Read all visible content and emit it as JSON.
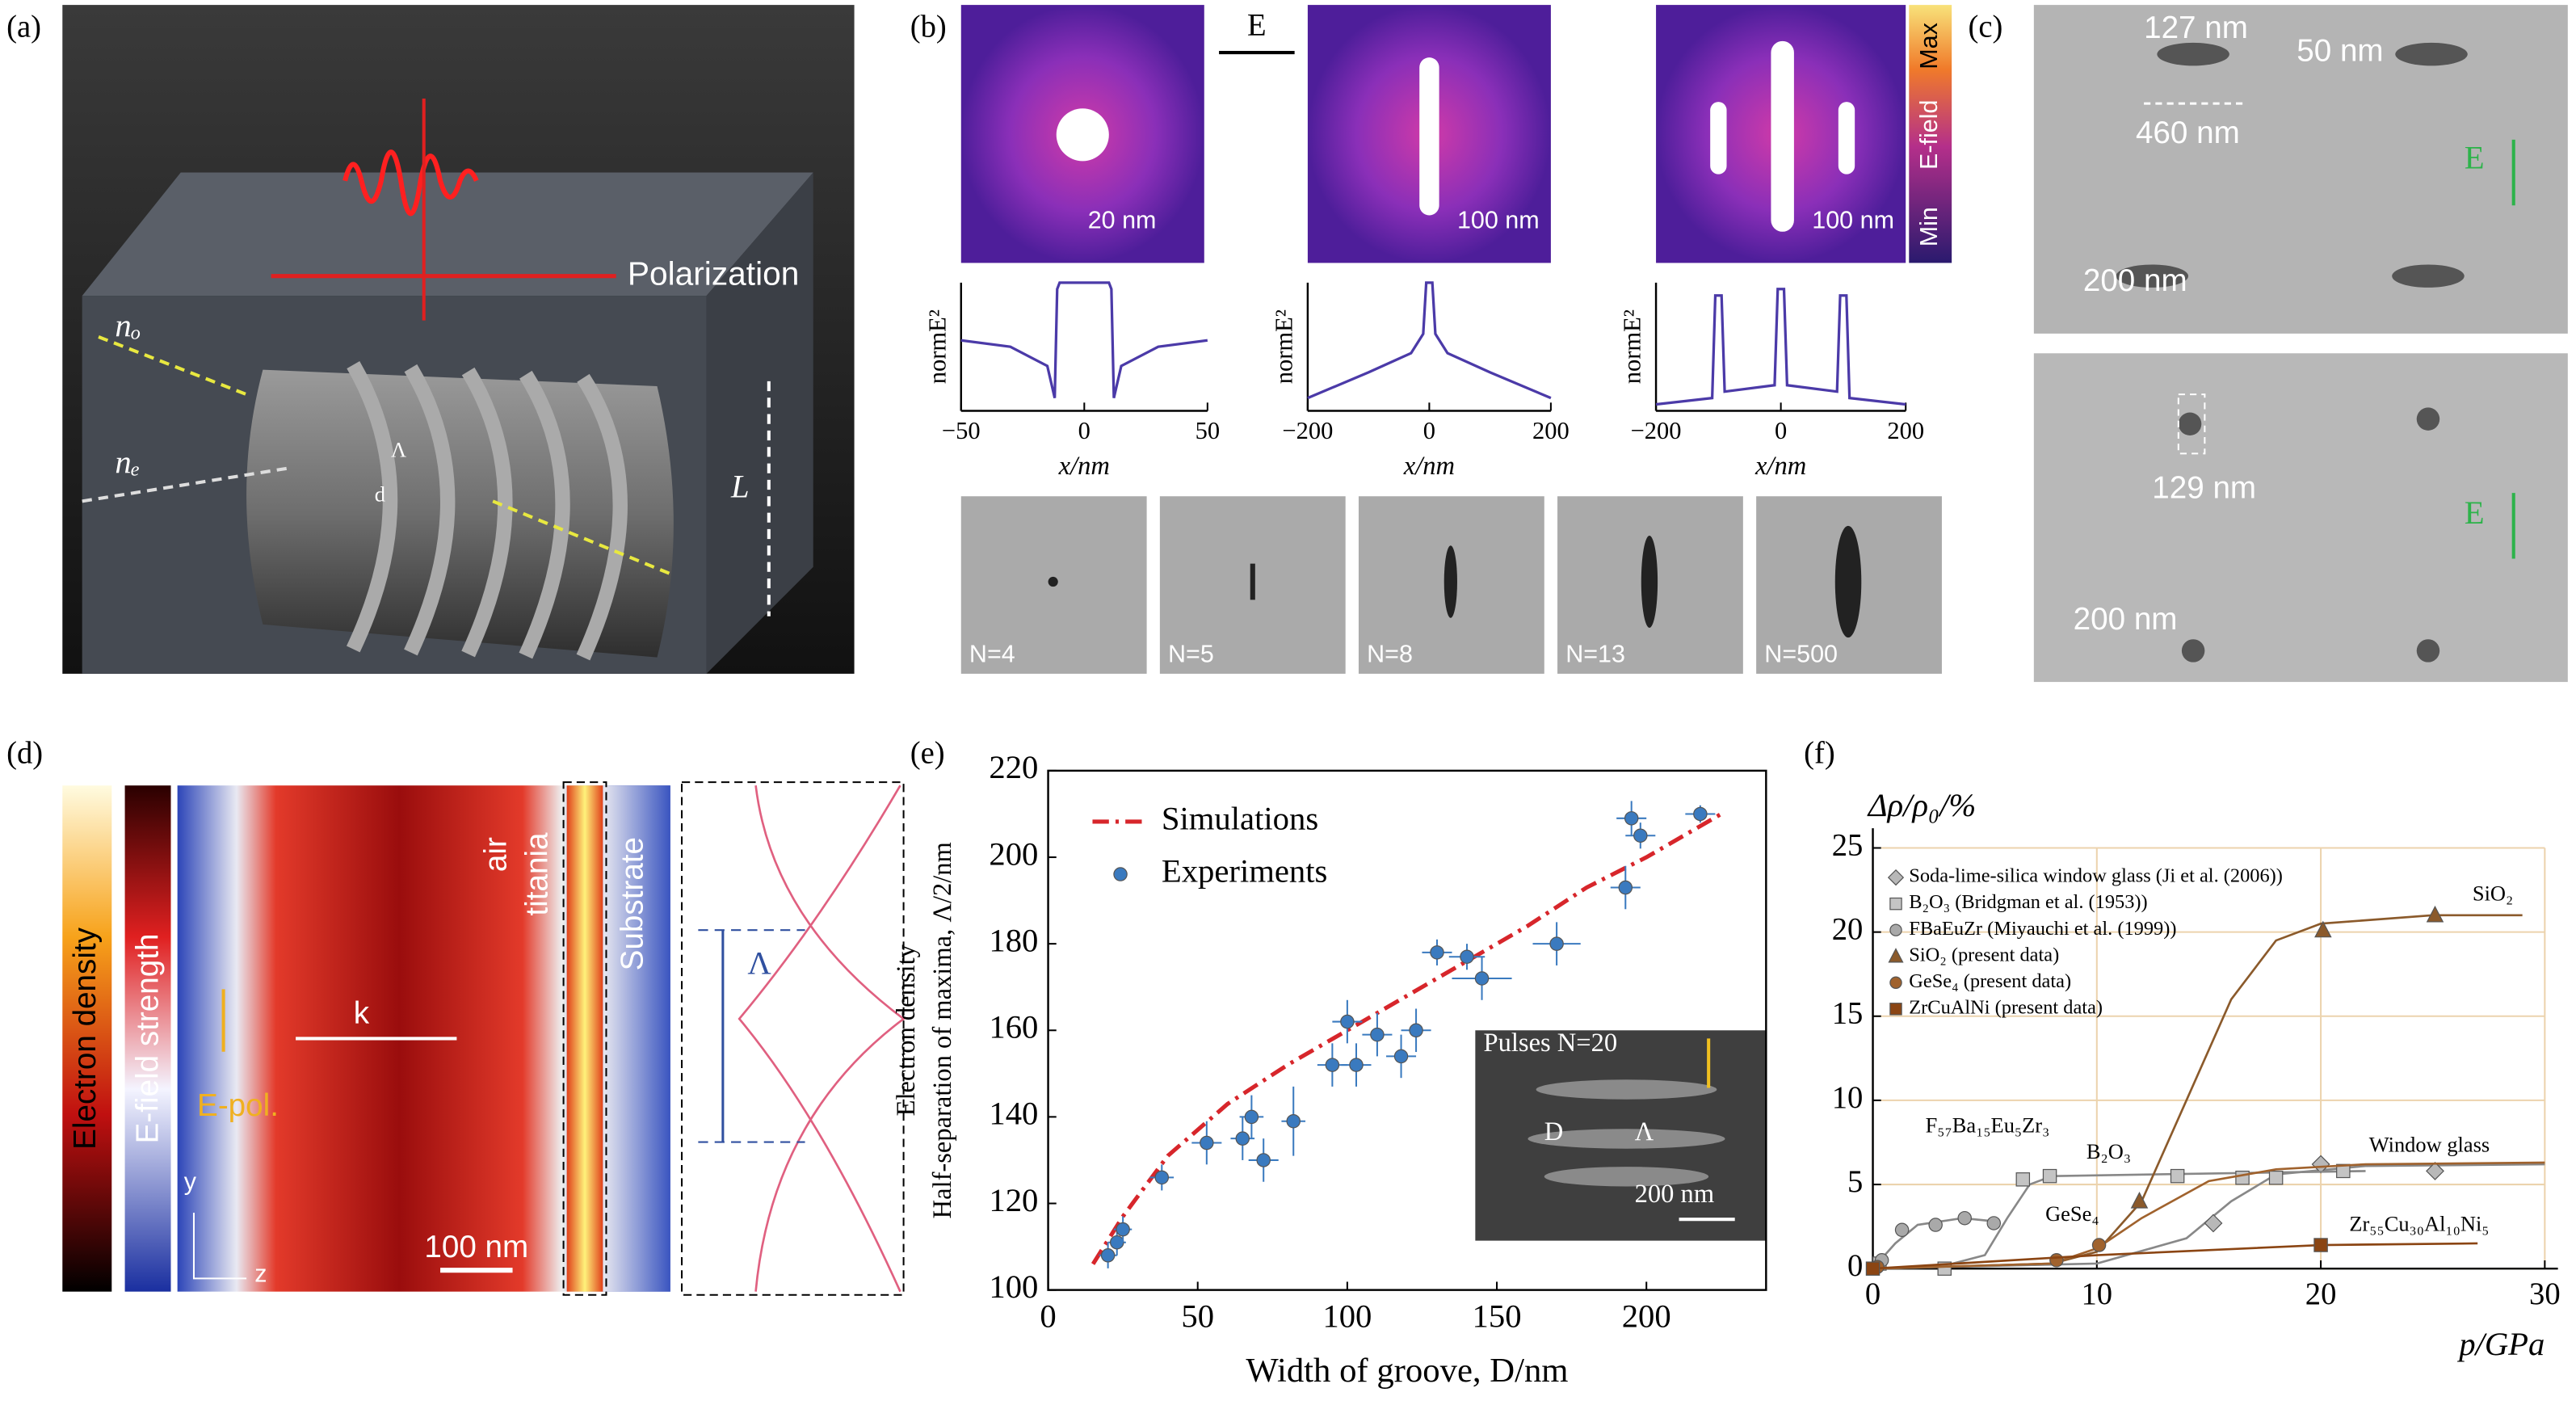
{
  "panels": {
    "a": {
      "label": "(a)",
      "polarization": "Polarization",
      "n_o": "nₒ",
      "n_e": "nₑ",
      "period": "Λ",
      "d": "d",
      "length": "L"
    },
    "b": {
      "label": "(b)",
      "field": "E",
      "scale_bars": [
        "20 nm",
        "100 nm",
        "100 nm"
      ],
      "colorbar": {
        "max": "Max",
        "title": "E-field",
        "min": "Min"
      },
      "sem_labels": [
        "N=4",
        "N=5",
        "N=8",
        "N=13",
        "N=500"
      ]
    },
    "c": {
      "label": "(c)",
      "top": {
        "width": "127 nm",
        "gap": "50 nm",
        "spacing": "460 nm",
        "field": "E",
        "scale_bar": "200 nm"
      },
      "bottom": {
        "width": "129 nm",
        "field": "E",
        "scale_bar": "200 nm"
      }
    },
    "d": {
      "label": "(d)",
      "electron_density": "Electron density",
      "field_strength": "E-field strength",
      "k": "k",
      "air": "air",
      "titania": "titania",
      "substrate": "Substrate",
      "epol": "E-pol.",
      "scale_bar": "100 nm",
      "y": "y",
      "z": "z",
      "period": "Λ"
    },
    "e": {
      "label": "(e)"
    },
    "f": {
      "label": "(f)"
    }
  },
  "chart_data": [
    {
      "type": "line",
      "xlabel": "x/nm",
      "ylabel": "normE²",
      "color": "#4b3aa8",
      "x": [
        -50,
        -30,
        -15,
        -12,
        -11,
        -10,
        10,
        11,
        12,
        15,
        30,
        50
      ],
      "values": [
        0.55,
        0.5,
        0.35,
        0.1,
        0.95,
        1,
        1,
        0.95,
        0.1,
        0.35,
        0.5,
        0.55
      ],
      "xlim": [
        -50,
        50
      ],
      "xticks": [
        {
          "value": -50,
          "label": "−50"
        },
        0,
        50
      ],
      "ylim": [
        0,
        1
      ]
    },
    {
      "type": "line",
      "xlabel": "x/nm",
      "ylabel": "normE²",
      "color": "#4b3aa8",
      "x": [
        -200,
        -100,
        -30,
        -10,
        -5,
        5,
        10,
        30,
        100,
        200
      ],
      "values": [
        0.1,
        0.3,
        0.45,
        0.6,
        1,
        1,
        0.6,
        0.45,
        0.3,
        0.1
      ],
      "xlim": [
        -200,
        200
      ],
      "xticks": [
        {
          "value": -200,
          "label": "−200"
        },
        0,
        200
      ],
      "ylim": [
        0,
        1
      ]
    },
    {
      "type": "line",
      "xlabel": "x/nm",
      "ylabel": "normE²",
      "color": "#4b3aa8",
      "x": [
        -200,
        -110,
        -105,
        -95,
        -90,
        -10,
        -5,
        5,
        10,
        90,
        95,
        105,
        110,
        200
      ],
      "values": [
        0.05,
        0.1,
        0.9,
        0.9,
        0.15,
        0.2,
        0.95,
        0.95,
        0.2,
        0.15,
        0.9,
        0.9,
        0.1,
        0.05
      ],
      "xlim": [
        -200,
        200
      ],
      "xticks": [
        {
          "value": -200,
          "label": "−200"
        },
        0,
        200
      ],
      "ylim": [
        0,
        1
      ]
    },
    {
      "type": "scatter",
      "xlabel": "Width of groove, D/nm",
      "ylabel": [
        "Electron density",
        "Half-separation of maxima, Λ/2/nm"
      ],
      "xlim": [
        0,
        240
      ],
      "xticks": [
        0,
        50,
        100,
        150,
        200
      ],
      "ylim": [
        100,
        220
      ],
      "yticks": [
        100,
        120,
        140,
        160,
        180,
        200,
        220
      ],
      "legend": "upper left",
      "series": [
        {
          "name": "Simulations",
          "type": "line",
          "color": "#d7262b",
          "x": [
            15,
            25,
            40,
            60,
            80,
            100,
            120,
            140,
            160,
            180,
            200,
            225
          ],
          "values": [
            106,
            117,
            131,
            143,
            152,
            160,
            168,
            176,
            184,
            193,
            200,
            210
          ]
        },
        {
          "name": "Experiments",
          "type": "scatter",
          "color": "#3a7abf",
          "x": [
            20,
            23,
            25,
            38,
            53,
            65,
            68,
            72,
            82,
            95,
            100,
            103,
            110,
            118,
            123,
            130,
            140,
            145,
            170,
            193,
            195,
            198,
            218
          ],
          "values": [
            108,
            111,
            114,
            126,
            134,
            135,
            140,
            130,
            139,
            152,
            162,
            152,
            159,
            154,
            160,
            178,
            177,
            172,
            180,
            193,
            209,
            205,
            210
          ],
          "xerr": [
            3,
            3,
            3,
            4,
            5,
            4,
            4,
            5,
            4,
            5,
            5,
            5,
            5,
            5,
            5,
            5,
            6,
            10,
            8,
            5,
            5,
            5,
            5
          ],
          "yerr": [
            3,
            3,
            3,
            3,
            5,
            5,
            5,
            5,
            8,
            5,
            5,
            5,
            5,
            5,
            5,
            3,
            3,
            5,
            5,
            5,
            4,
            3,
            2
          ]
        }
      ],
      "inset": {
        "title": "Pulses N=20",
        "d": "D",
        "period": "Λ",
        "scale_bar": "200 nm"
      }
    },
    {
      "type": "scatter",
      "xlabel": "p/GPa",
      "ylabel": "Δρ/ρ₀/%",
      "xlim": [
        0,
        30
      ],
      "xticks": [
        0,
        10,
        20,
        30
      ],
      "ylim": [
        0,
        25
      ],
      "yticks": [
        0,
        5,
        10,
        15,
        20,
        25
      ],
      "grid": true,
      "grid_color": "#ecd3ad",
      "legend": "upper left",
      "series": [
        {
          "name": "Soda-lime-silica window glass (Ji et al. (2006))",
          "marker": "diamond",
          "color": "#b8b8b8",
          "x": [
            15.2,
            20,
            25.1
          ],
          "values": [
            2.7,
            6.2,
            5.8
          ],
          "fit": {
            "x": [
              0,
              10,
              14,
              16,
              18,
              22,
              30
            ],
            "values": [
              0,
              0.3,
              1.8,
              4,
              5.6,
              6.1,
              6.2
            ]
          }
        },
        {
          "name": "B₂O₃ (Bridgman et al. (1953))",
          "marker": "square",
          "color": "#c4c4c4",
          "x": [
            0.3,
            3.2,
            6.7,
            7.9,
            13.6,
            16.5,
            18,
            21
          ],
          "values": [
            0.3,
            0,
            5.3,
            5.5,
            5.5,
            5.4,
            5.4,
            5.8
          ],
          "fit": {
            "x": [
              0,
              3,
              5,
              6,
              7,
              8,
              22
            ],
            "values": [
              0,
              0.1,
              0.8,
              3,
              5,
              5.5,
              5.8
            ]
          }
        },
        {
          "name": "FBaEuZr (Miyauchi et al. (1999))",
          "marker": "circle",
          "color": "#a9a9a9",
          "x": [
            0.4,
            1.3,
            2.8,
            4.1,
            5.4
          ],
          "values": [
            0.5,
            2.3,
            2.6,
            3,
            2.7
          ],
          "fit": {
            "x": [
              0,
              1,
              2,
              4,
              5.5
            ],
            "values": [
              0,
              1.5,
              2.6,
              3,
              2.8
            ]
          }
        },
        {
          "name": "SiO₂ (present data)",
          "marker": "triangle",
          "color": "#8b5a2b",
          "x": [
            11.9,
            20.1,
            25.1
          ],
          "values": [
            4,
            20.1,
            21
          ],
          "fit": {
            "x": [
              0,
              8,
              10,
              12,
              14,
              16,
              18,
              20,
              25,
              29
            ],
            "values": [
              0,
              0.3,
              1,
              4,
              10,
              16,
              19.5,
              20.5,
              21,
              21
            ]
          }
        },
        {
          "name": "GeSe₄ (present data)",
          "marker": "circle",
          "color": "#a0622d",
          "x": [
            0.2,
            8.2,
            10.1
          ],
          "values": [
            0.1,
            0.5,
            1.4
          ],
          "fit": {
            "x": [
              0,
              8,
              10,
              12,
              15,
              18,
              22,
              30
            ],
            "values": [
              0,
              0.3,
              1.2,
              3,
              5.2,
              5.9,
              6.2,
              6.3
            ]
          }
        },
        {
          "name": "ZrCuAlNi (present data)",
          "marker": "square",
          "color": "#8b4513",
          "x": [
            0,
            20
          ],
          "values": [
            0,
            1.4
          ],
          "fit": {
            "x": [
              0,
              10,
              20,
              27
            ],
            "values": [
              0,
              0.8,
              1.4,
              1.5
            ]
          }
        }
      ],
      "annotations": [
        "SiO₂",
        "Window glass",
        "B₂O₃",
        "GeSe₄",
        "Zr₅₅Cu₃₀Al₁₀Ni₅",
        "F₅₇Ba₁₅Eu₅Zr₃"
      ]
    }
  ]
}
